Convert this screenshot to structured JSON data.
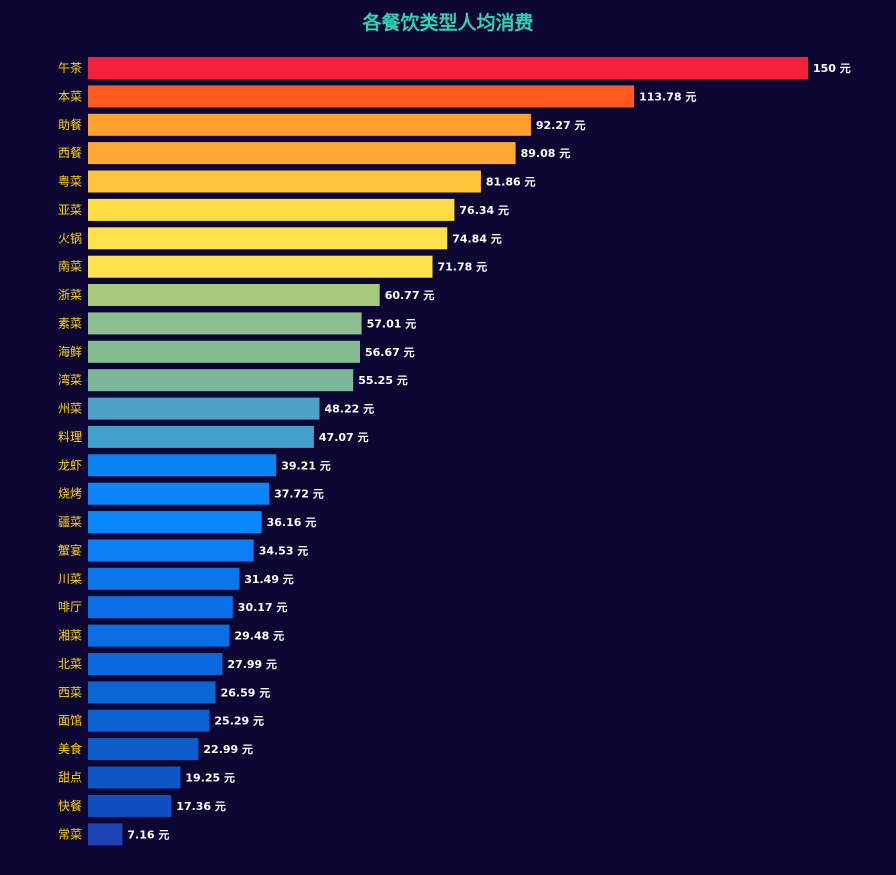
{
  "chart_data": {
    "type": "bar",
    "orientation": "horizontal",
    "title": "各餐饮类型人均消费",
    "unit": "元",
    "categories": [
      "午茶",
      "本菜",
      "助餐",
      "西餐",
      "粤菜",
      "亚菜",
      "火锅",
      "南菜",
      "浙菜",
      "素菜",
      "海鲜",
      "湾菜",
      "州菜",
      "料理",
      "龙虾",
      "烧烤",
      "疆菜",
      "蟹宴",
      "川菜",
      "啡厅",
      "湘菜",
      "北菜",
      "西菜",
      "面馆",
      "美食",
      "甜点",
      "快餐",
      "常菜"
    ],
    "values": [
      150,
      113.78,
      92.27,
      89.08,
      81.86,
      76.34,
      74.84,
      71.78,
      60.77,
      57.01,
      56.67,
      55.25,
      48.22,
      47.07,
      39.21,
      37.72,
      36.16,
      34.53,
      31.49,
      30.17,
      29.48,
      27.99,
      26.59,
      25.29,
      22.99,
      19.25,
      17.36,
      7.16
    ],
    "value_labels": [
      "150 元",
      "113.78 元",
      "92.27 元",
      "89.08 元",
      "81.86 元",
      "76.34 元",
      "74.84 元",
      "71.78 元",
      "60.77 元",
      "57.01 元",
      "56.67 元",
      "55.25 元",
      "48.22 元",
      "47.07 元",
      "39.21 元",
      "37.72 元",
      "36.16 元",
      "34.53 元",
      "31.49 元",
      "30.17 元",
      "29.48 元",
      "27.99 元",
      "26.59 元",
      "25.29 元",
      "22.99 元",
      "19.25 元",
      "17.36 元",
      "7.16 元"
    ],
    "xlim": [
      0,
      150
    ],
    "grid": false,
    "legend": "none",
    "colors": [
      "#f5203a",
      "#ff5a1f",
      "#ff9f2e",
      "#ffa833",
      "#ffc538",
      "#ffdd44",
      "#ffe24a",
      "#ffe44f",
      "#a6c97c",
      "#8cbf90",
      "#85bc92",
      "#7ab89a",
      "#4ba3c8",
      "#42a0cc",
      "#0a84f0",
      "#0a86f8",
      "#0888fa",
      "#0a80f4",
      "#0a76ea",
      "#0a72e6",
      "#0a6ee2",
      "#0a6adc",
      "#0b66d6",
      "#0b62d2",
      "#0d5ccc",
      "#0e55c6",
      "#0f4ec0",
      "#1d42b4"
    ],
    "background": "#0d0632",
    "title_color": "#2ed3b3",
    "category_label_color": "#ffd700",
    "value_label_color": "#ffffff"
  }
}
